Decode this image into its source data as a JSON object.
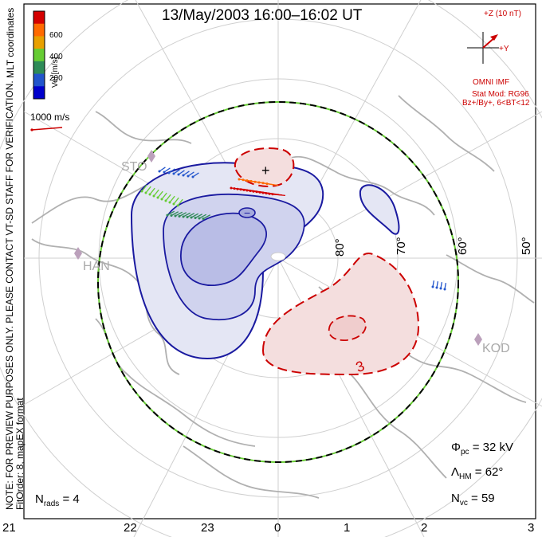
{
  "title": "13/May/2003 16:00–16:02 UT",
  "colorbar": {
    "label": "Vel [m/s]",
    "ticks": [
      "600",
      "400",
      "200"
    ],
    "colors": [
      "#d40000",
      "#ff6a00",
      "#e8a000",
      "#66cc33",
      "#2e8b57",
      "#2255cc",
      "#0000cc"
    ]
  },
  "side_text": {
    "coords": "MLT coordinates",
    "notice": "NOTE: FOR PREVIEW PURPOSES ONLY. PLEASE CONTACT VT-SD STAFF FOR VERIFICATION.",
    "fit": "FitOrder: 8, mapEX format"
  },
  "ref_vector": "1000 m/s",
  "imf": {
    "z_label": "+Z (10 nT)",
    "y_label": "+Y",
    "source": "OMNI IMF",
    "model": "Stat Mod: RG96",
    "condition": "Bz+/By+, 6<BT<12"
  },
  "stations": [
    {
      "name": "STO",
      "color": "#aaaaaa"
    },
    {
      "name": "HAN",
      "color": "#aaaaaa"
    },
    {
      "name": "KOD",
      "color": "#aaaaaa"
    }
  ],
  "lat_labels": [
    "80°",
    "70°",
    "60°",
    "50°"
  ],
  "contour_labels": [
    "3"
  ],
  "stats": {
    "phi_pc": {
      "sym": "Φ",
      "sub": "pc",
      "value": "= 32 kV"
    },
    "lambda_hm": {
      "sym": "Λ",
      "sub": "HM",
      "value": "= 62°"
    },
    "n_vc": {
      "sym": "N",
      "sub": "vc",
      "value": "= 59"
    },
    "n_rads": {
      "sym": "N",
      "sub": "rads",
      "value": "= 4"
    }
  },
  "mlt_axis": [
    "21",
    "22",
    "23",
    "0",
    "1",
    "2",
    "3"
  ],
  "colors": {
    "positive_cell": "#cc0000",
    "negative_cell": "#1a1aa0",
    "hmb": "#000000",
    "hmb_dash": "#66cc33",
    "map": "#b0b0b0"
  }
}
